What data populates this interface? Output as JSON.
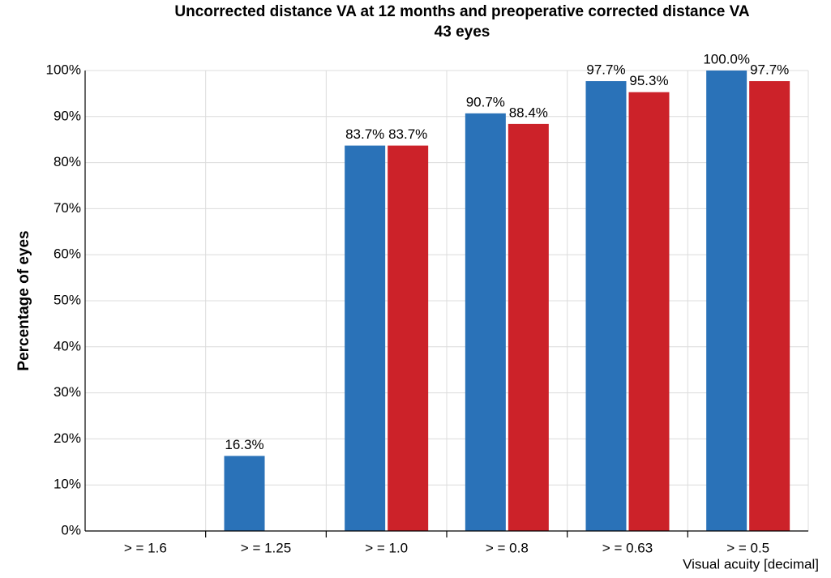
{
  "chart_data": {
    "type": "bar",
    "title": "Uncorrected distance VA at 12 months and preoperative corrected distance VA",
    "subtitle": "43 eyes",
    "x_label": "Visual acuity [decimal]",
    "y_label": "Percentage of eyes",
    "categories": [
      "> = 1.6",
      "> = 1.25",
      "> = 1.0",
      "> = 0.8",
      "> = 0.63",
      "> = 0.5"
    ],
    "series": [
      {
        "color": "#2a72b8",
        "values": [
          0,
          16.3,
          83.7,
          90.7,
          97.7,
          100.0
        ],
        "value_labels": [
          null,
          "16.3%",
          "83.7%",
          "90.7%",
          "97.7%",
          "100.0%"
        ]
      },
      {
        "color": "#cc2229",
        "values": [
          0,
          0,
          83.7,
          88.4,
          95.3,
          97.7
        ],
        "value_labels": [
          null,
          null,
          "83.7%",
          "88.4%",
          "95.3%",
          "97.7%"
        ]
      }
    ],
    "ylim": [
      0,
      100
    ],
    "yticks": [
      {
        "value": 0,
        "label": "0%"
      },
      {
        "value": 10,
        "label": "10%"
      },
      {
        "value": 20,
        "label": "20%"
      },
      {
        "value": 30,
        "label": "30%"
      },
      {
        "value": 40,
        "label": "40%"
      },
      {
        "value": 50,
        "label": "50%"
      },
      {
        "value": 60,
        "label": "60%"
      },
      {
        "value": 70,
        "label": "70%"
      },
      {
        "value": 80,
        "label": "80%"
      },
      {
        "value": 90,
        "label": "90%"
      },
      {
        "value": 100,
        "label": "100%"
      }
    ],
    "grid": true
  }
}
